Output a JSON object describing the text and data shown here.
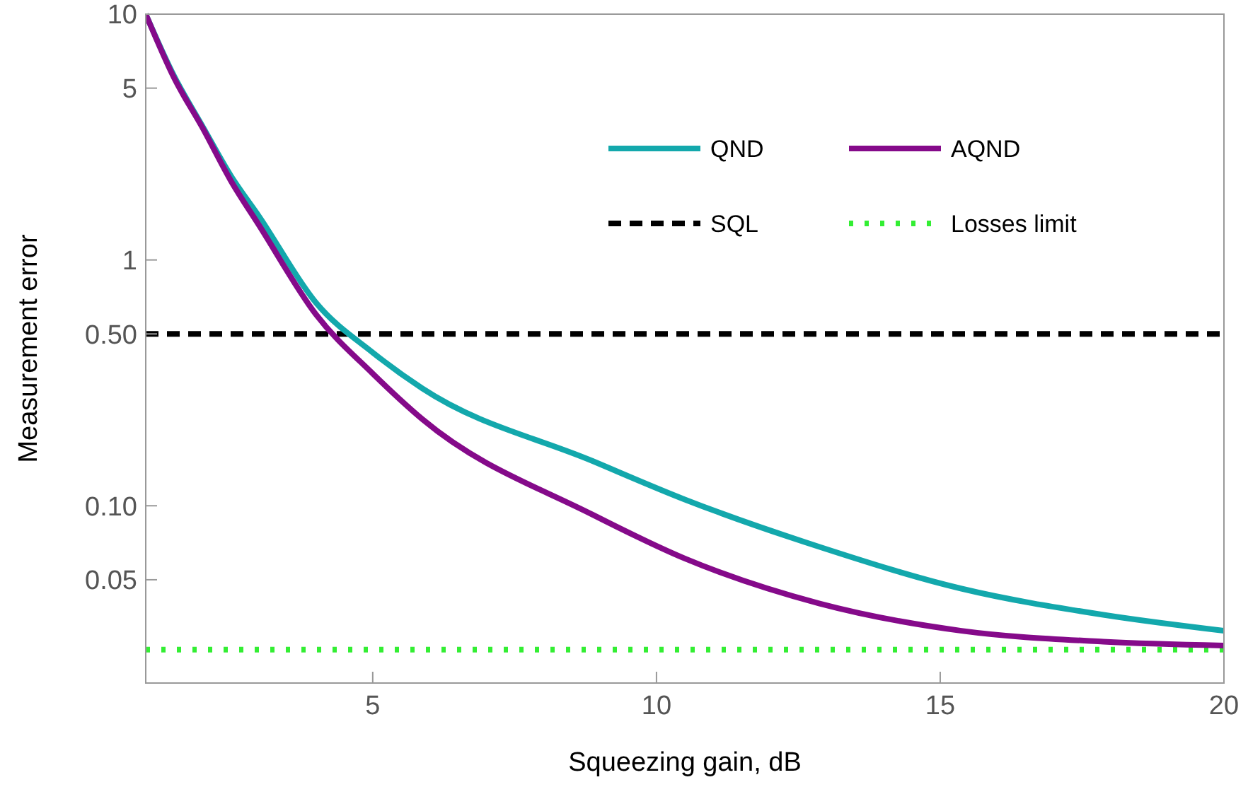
{
  "chart_data": {
    "type": "line",
    "xlabel": "Squeezing gain, dB",
    "ylabel": "Measurement error",
    "log": "y",
    "xlim": [
      1,
      20
    ],
    "xticks": [
      5,
      10,
      15,
      20
    ],
    "ylim": [
      0.019,
      10
    ],
    "yticks": [
      0.05,
      {
        "value": 0.1,
        "label": "0.10"
      },
      {
        "value": 0.5,
        "label": "0.50"
      },
      1,
      5,
      10
    ],
    "series": [
      {
        "name": "QND",
        "color": "#13a8ac",
        "x": [
          1,
          1.5,
          2,
          2.5,
          3,
          4,
          5,
          5.875,
          8.875,
          10.5,
          12.875,
          15.375,
          17.875,
          20
        ],
        "values": [
          10,
          5.6,
          3.5,
          2.2,
          1.5,
          0.67,
          0.42,
          0.3,
          0.152,
          0.106,
          0.068,
          0.046,
          0.036,
          0.031
        ]
      },
      {
        "name": "AQND",
        "color": "#850a8a",
        "x": [
          1,
          1.5,
          2,
          2.5,
          3,
          4,
          5,
          5.875,
          8.875,
          10.5,
          12.875,
          15.375,
          17.875,
          20
        ],
        "values": [
          10,
          5.5,
          3.45,
          2.1,
          1.38,
          0.6,
          0.345,
          0.225,
          0.092,
          0.061,
          0.04,
          0.031,
          0.028,
          0.027
        ]
      }
    ],
    "ref_lines": [
      {
        "axis": "y",
        "value": 0.5,
        "label": "SQL",
        "color": "#000000",
        "line_style": "dashed"
      },
      {
        "axis": "y",
        "value": 0.026,
        "label": "Losses limit",
        "color": "#33ee33",
        "line_style": "dotted"
      }
    ],
    "legend": "top right",
    "grid": false
  }
}
